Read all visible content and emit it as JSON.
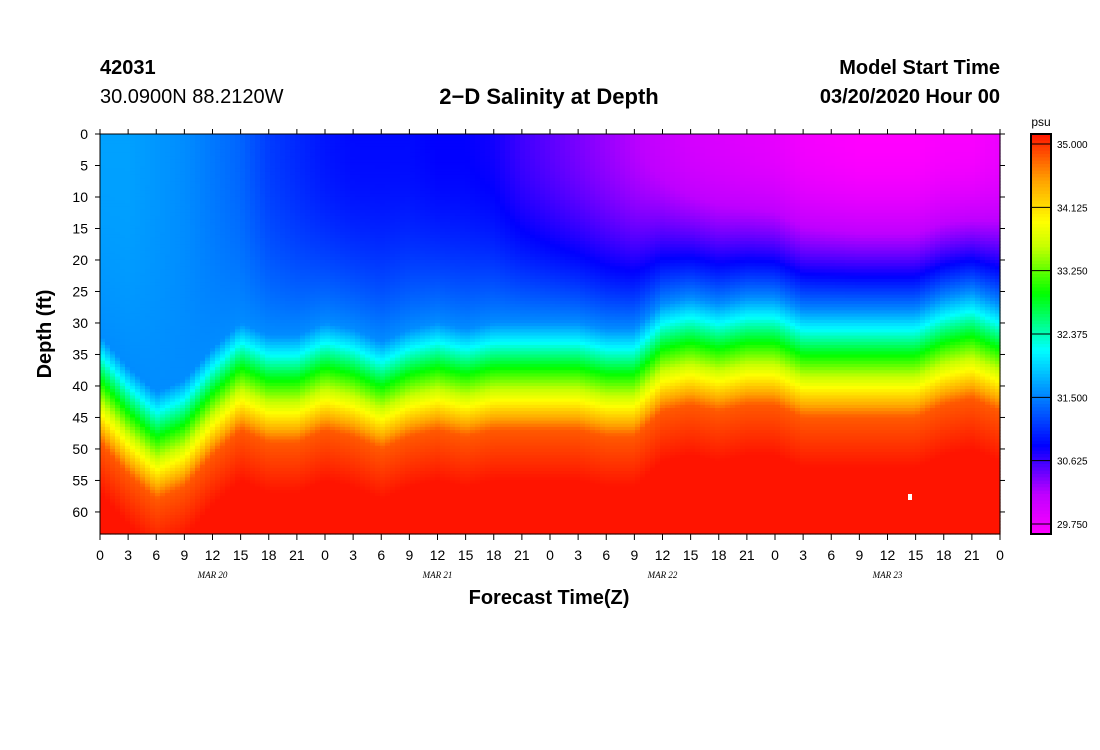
{
  "header": {
    "station_id": "42031",
    "location": "30.0900N 88.2120W",
    "title": "2−D Salinity at Depth",
    "model_label": "Model Start Time",
    "model_time": "03/20/2020 Hour 00"
  },
  "chart_data": {
    "type": "heatmap",
    "title": "2−D Salinity at Depth",
    "xlabel": "Forecast Time(Z)",
    "ylabel": "Depth (ft)",
    "xlim": [
      0,
      96
    ],
    "ylim": [
      0,
      63.5
    ],
    "y_ticks": [
      "0",
      "5",
      "10",
      "15",
      "20",
      "25",
      "30",
      "35",
      "40",
      "45",
      "50",
      "55",
      "60"
    ],
    "x_tick_labels": [
      "0",
      "3",
      "6",
      "9",
      "12",
      "15",
      "18",
      "21",
      "0",
      "3",
      "6",
      "9",
      "12",
      "15",
      "18",
      "21",
      "0",
      "3",
      "6",
      "9",
      "12",
      "15",
      "18",
      "21",
      "0",
      "3",
      "6",
      "9",
      "12",
      "15",
      "18",
      "21",
      "0"
    ],
    "date_labels": [
      "MAR 20",
      "MAR 21",
      "MAR 22",
      "MAR 23"
    ],
    "colorbar": {
      "unit": "psu",
      "min": 29.75,
      "max": 35.0,
      "tick_labels": [
        "35.000",
        "34.125",
        "33.250",
        "32.375",
        "31.500",
        "30.625",
        "29.750"
      ],
      "tick_values": [
        35.0,
        34.125,
        33.25,
        32.375,
        31.5,
        30.625,
        29.75
      ]
    },
    "profile_x_hours": [
      0,
      3,
      6,
      9,
      12,
      15,
      18,
      21,
      24,
      27,
      30,
      33,
      36,
      39,
      42,
      45,
      48,
      51,
      54,
      57,
      60,
      63,
      66,
      69,
      72,
      75,
      78,
      81,
      84,
      87,
      90,
      93,
      96
    ],
    "halocline_depth_ft": [
      35,
      40,
      44,
      42,
      37,
      33,
      35,
      35,
      33,
      34,
      36,
      34,
      33,
      34,
      33,
      33,
      33,
      33,
      34,
      34,
      30,
      29,
      30,
      29,
      29,
      31,
      31,
      31,
      31,
      31,
      29,
      28,
      30
    ],
    "surface_salinity_psu": [
      31.7,
      31.7,
      31.65,
      31.6,
      31.5,
      31.4,
      31.2,
      31.1,
      31.0,
      30.95,
      30.95,
      30.95,
      30.9,
      30.9,
      30.85,
      30.7,
      30.6,
      30.5,
      30.4,
      30.3,
      30.2,
      30.1,
      30.05,
      30.0,
      29.95,
      29.85,
      29.8,
      29.75,
      29.75,
      29.75,
      29.8,
      29.8,
      29.9
    ],
    "bottom_salinity_psu": 35.0
  }
}
